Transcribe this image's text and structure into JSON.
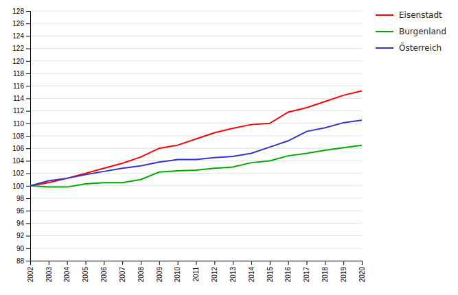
{
  "chart_data": {
    "type": "line",
    "x": [
      2002,
      2003,
      2004,
      2005,
      2006,
      2007,
      2008,
      2009,
      2010,
      2011,
      2012,
      2013,
      2014,
      2015,
      2016,
      2017,
      2018,
      2019,
      2020
    ],
    "series": [
      {
        "name": "Eisenstadt",
        "color": "#ff0000",
        "values": [
          100.0,
          100.5,
          101.2,
          102.0,
          102.8,
          103.6,
          104.6,
          106.0,
          106.5,
          107.5,
          108.5,
          109.2,
          109.8,
          110.0,
          111.8,
          112.5,
          113.5,
          114.5,
          115.2
        ]
      },
      {
        "name": "Burgenland",
        "color": "#00aa00",
        "values": [
          100.0,
          99.8,
          99.8,
          100.3,
          100.5,
          100.5,
          101.0,
          102.2,
          102.4,
          102.5,
          102.8,
          103.0,
          103.7,
          104.0,
          104.8,
          105.2,
          105.7,
          106.1,
          106.5
        ]
      },
      {
        "name": "Österreich",
        "color": "#3333cc",
        "values": [
          100.0,
          100.8,
          101.2,
          101.8,
          102.3,
          102.8,
          103.2,
          103.8,
          104.2,
          104.2,
          104.5,
          104.7,
          105.2,
          106.2,
          107.2,
          108.7,
          109.3,
          110.1,
          110.5
        ]
      }
    ],
    "xlim": [
      2002,
      2020
    ],
    "xticks": [
      2002,
      2003,
      2004,
      2005,
      2006,
      2007,
      2008,
      2009,
      2010,
      2011,
      2012,
      2013,
      2014,
      2015,
      2016,
      2017,
      2018,
      2019,
      2020
    ],
    "ylim": [
      88,
      128
    ],
    "yticks": [
      88,
      90,
      92,
      94,
      96,
      98,
      100,
      102,
      104,
      106,
      108,
      110,
      112,
      114,
      116,
      118,
      120,
      122,
      124,
      126,
      128
    ],
    "grid": true
  }
}
